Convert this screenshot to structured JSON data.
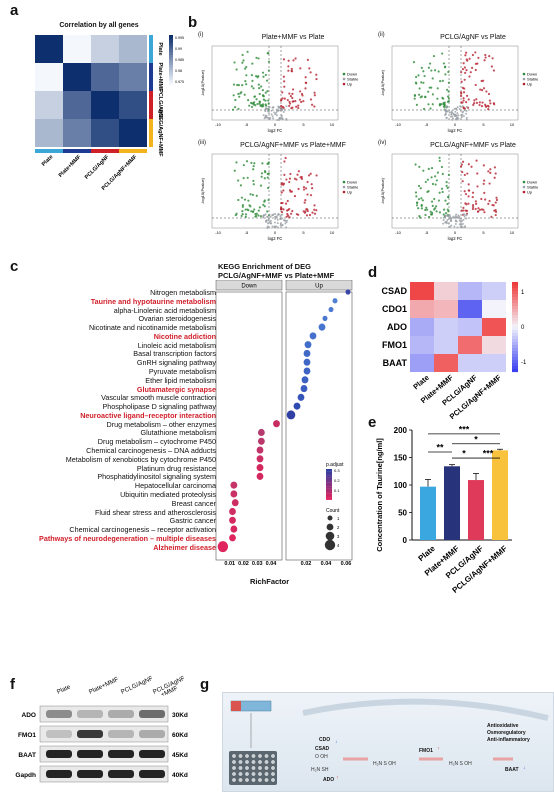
{
  "panels": {
    "a": {
      "label": "a",
      "title": "Correlation by all genes",
      "samples": [
        "Plate",
        "Plate+MMF",
        "PCLG/AgNF",
        "PCLG/AgNF+MMF"
      ],
      "scale_ticks": [
        "0.995",
        "0.99",
        "0.985",
        "0.98",
        "0.975"
      ],
      "sample_colors": [
        "#3aa7d6",
        "#1f3a93",
        "#cf2027",
        "#f2b41b"
      ]
    },
    "b": {
      "label": "b",
      "plots": [
        {
          "roman": "(i)",
          "title": "Plate+MMF vs Plate"
        },
        {
          "roman": "(ii)",
          "title": "PCLG/AgNF  vs Plate"
        },
        {
          "roman": "(iii)",
          "title": "PCLG/AgNF+MMF vs Plate+MMF"
        },
        {
          "roman": "(iv)",
          "title": "PCLG/AgNF+MMF vs Plate"
        }
      ],
      "ylabel": "-log10(Pvalue)",
      "xlabel": "log2 FC",
      "legend": [
        "Down",
        "Stable",
        "Up"
      ],
      "x_ticks": [
        "-10",
        "-5",
        "0",
        "5",
        "10"
      ]
    },
    "c": {
      "label": "c",
      "title_line1": "KEGG Enrichment of DEG",
      "title_line2": "PCLG/AgNF+MMF vs Plate+MMF",
      "facets": [
        "Down",
        "Up"
      ],
      "xlabel": "RichFactor",
      "x_ticks_down": [
        "0.01",
        "0.02",
        "0.03",
        "0.04"
      ],
      "x_ticks_up": [
        "0.02",
        "0.04",
        "0.06"
      ],
      "legend_padj_title": "p.adjust",
      "legend_padj_ticks": [
        "0.3",
        "0.2",
        "0.1"
      ],
      "legend_count_title": "Count",
      "legend_count_ticks": [
        "1",
        "2",
        "3",
        "4"
      ],
      "pathways": [
        {
          "name": "Nitrogen metabolism",
          "hl": false
        },
        {
          "name": "Taurine and hypotaurine metabolism",
          "hl": true
        },
        {
          "name": "alpha-Linolenic acid metabolism",
          "hl": false
        },
        {
          "name": "Ovarian steroidogenesis",
          "hl": false
        },
        {
          "name": "Nicotinate and nicotinamide metabolism",
          "hl": false
        },
        {
          "name": "Nicotine addiction",
          "hl": true
        },
        {
          "name": "Linoleic acid metabolism",
          "hl": false
        },
        {
          "name": "Basal transcription factors",
          "hl": false
        },
        {
          "name": "GnRH signaling pathway",
          "hl": false
        },
        {
          "name": "Pyruvate metabolism",
          "hl": false
        },
        {
          "name": "Ether lipid metabolism",
          "hl": false
        },
        {
          "name": "Glutamatergic synapse",
          "hl": true
        },
        {
          "name": "Vascular smooth muscle contraction",
          "hl": false
        },
        {
          "name": "Phospholipase D signaling pathway",
          "hl": false
        },
        {
          "name": "Neuroactive ligand–receptor interaction",
          "hl": true
        },
        {
          "name": "Drug metabolism – other enzymes",
          "hl": false
        },
        {
          "name": "Glutathione metabolism",
          "hl": false
        },
        {
          "name": "Drug metabolism – cytochrome P450",
          "hl": false
        },
        {
          "name": "Chemical carcinogenesis – DNA adducts",
          "hl": false
        },
        {
          "name": "Metabolism of xenobiotics by cytochrome P450",
          "hl": false
        },
        {
          "name": "Platinum drug resistance",
          "hl": false
        },
        {
          "name": "Phosphatidylinositol signaling system",
          "hl": false
        },
        {
          "name": "Hepatocellular carcinoma",
          "hl": false
        },
        {
          "name": "Ubiquitin mediated proteolysis",
          "hl": false
        },
        {
          "name": "Breast cancer",
          "hl": false
        },
        {
          "name": "Fluid shear stress and atherosclerosis",
          "hl": false
        },
        {
          "name": "Gastric cancer",
          "hl": false
        },
        {
          "name": "Chemical carcinogenesis – receptor activation",
          "hl": false
        },
        {
          "name": "Pathways of neurodegeneration – multiple diseases",
          "hl": true
        },
        {
          "name": "Alzheimer disease",
          "hl": true
        }
      ]
    },
    "d": {
      "label": "d",
      "genes": [
        "CSAD",
        "CDO1",
        "ADO",
        "FMO1",
        "BAAT"
      ],
      "samples": [
        "Plate",
        "Plate+MMF",
        "PCLG/AgNF",
        "PCLG/AgNF+MMF"
      ],
      "scale_ticks": [
        "1",
        "0",
        "-1"
      ]
    },
    "e": {
      "label": "e",
      "ylabel": "Concentration of Taurine[ng/ml]",
      "y_ticks": [
        "0",
        "50",
        "100",
        "150",
        "200"
      ],
      "sig": [
        "***",
        "**",
        "*",
        "*",
        "***"
      ]
    },
    "f": {
      "label": "f",
      "lanes": [
        "Plate",
        "Plate+MMF",
        "PCLG/AgNF",
        "PCLG/AgNF\n+MMF"
      ],
      "rows": [
        {
          "protein": "ADO",
          "size": "30Kd"
        },
        {
          "protein": "FMO1",
          "size": "60Kd"
        },
        {
          "protein": "BAAT",
          "size": "45Kd"
        },
        {
          "protein": "Gapdh",
          "size": "40Kd"
        }
      ]
    },
    "g": {
      "label": "g",
      "effects": [
        "Antioxidative",
        "Osmoregulatory",
        "Anti-inflammatory"
      ],
      "enzymes": [
        "CDO",
        "CSAD",
        "ADO",
        "FMO1",
        "BAAT"
      ]
    }
  },
  "chart_data": [
    {
      "type": "heatmap",
      "title": "Correlation by all genes",
      "rows": [
        "Plate",
        "Plate+MMF",
        "PCLG/AgNF",
        "PCLG/AgNF+MMF"
      ],
      "cols": [
        "Plate",
        "Plate+MMF",
        "PCLG/AgNF",
        "PCLG/AgNF+MMF"
      ],
      "values": [
        [
          1.0,
          0.975,
          0.98,
          0.983
        ],
        [
          0.975,
          1.0,
          0.993,
          0.99
        ],
        [
          0.98,
          0.993,
          1.0,
          0.996
        ],
        [
          0.983,
          0.99,
          0.996,
          1.0
        ]
      ],
      "scale_range": [
        0.975,
        1.0
      ]
    },
    {
      "type": "scatter",
      "title": "KEGG Enrichment of DEG PCLG/AgNF+MMF vs Plate+MMF",
      "xlabel": "RichFactor",
      "down_richfactor": [
        0.005,
        0.012,
        0.013,
        0.012,
        0.012,
        0.014,
        0.013,
        0.013,
        0.032,
        0.032,
        0.032,
        0.032,
        0.033,
        0.033,
        0.044
      ],
      "up_richfactor": [
        0.005,
        0.011,
        0.015,
        0.018,
        0.019,
        0.021,
        0.021,
        0.021,
        0.022,
        0.027,
        0.036,
        0.039,
        0.045,
        0.049,
        0.062
      ],
      "down_count": [
        4,
        2,
        2,
        2,
        2,
        2,
        2,
        2,
        2,
        2,
        2,
        2,
        2,
        2,
        2
      ],
      "up_count": [
        3,
        2,
        2,
        2,
        2,
        2,
        2,
        2,
        2,
        2,
        2,
        1,
        1,
        1,
        1
      ]
    },
    {
      "type": "heatmap",
      "rows": [
        "CSAD",
        "CDO1",
        "ADO",
        "FMO1",
        "BAAT"
      ],
      "cols": [
        "Plate",
        "Plate+MMF",
        "PCLG/AgNF",
        "PCLG/AgNF+MMF"
      ],
      "values": [
        [
          1.4,
          0.3,
          -0.5,
          -0.3
        ],
        [
          0.6,
          0.5,
          -1.2,
          0.0
        ],
        [
          -0.6,
          -0.3,
          -0.4,
          1.3
        ],
        [
          -0.5,
          -0.3,
          1.1,
          0.2
        ],
        [
          -0.7,
          1.2,
          -0.3,
          -0.3
        ]
      ],
      "scale_range": [
        -1.5,
        1.5
      ]
    },
    {
      "type": "bar",
      "categories": [
        "Plate",
        "Plate+MMF",
        "PCLG/AgNF",
        "PCLG/AgNF+MMF"
      ],
      "values": [
        97,
        134,
        109,
        163
      ],
      "errors": [
        13,
        3,
        12,
        2
      ],
      "colors": [
        "#3aa7e0",
        "#27337a",
        "#e03a5b",
        "#f9c23c"
      ],
      "ylabel": "Concentration of Taurine[ng/ml]",
      "ylim": [
        0,
        200
      ]
    }
  ]
}
